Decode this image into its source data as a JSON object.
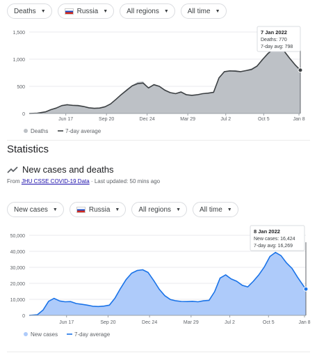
{
  "filters_top": {
    "metric": "Deaths",
    "country": "Russia",
    "region": "All regions",
    "time": "All time"
  },
  "filters_bottom": {
    "metric": "New cases",
    "country": "Russia",
    "region": "All regions",
    "time": "All time"
  },
  "statistics_heading": "Statistics",
  "subheading": "New cases and deaths",
  "source": {
    "prefix": "From ",
    "link": "JHU CSSE COVID-19 Data",
    "suffix": " · Last updated: 50 mins ago"
  },
  "colors": {
    "deaths_fill": "#bdc1c6",
    "deaths_line": "#3c4043",
    "cases_fill": "#aecbfa",
    "cases_line": "#1a73e8"
  },
  "chart_data": [
    {
      "type": "area",
      "x_ticks": [
        "Jun 17",
        "Sep 20",
        "Dec 24",
        "Mar 29",
        "Jul 2",
        "Oct 5",
        "Jan 8"
      ],
      "y_ticks": [
        "0",
        "500",
        "1,000",
        "1,500"
      ],
      "ylim": [
        0,
        1500
      ],
      "grid": true,
      "legend": [
        "Deaths",
        "7-day average"
      ],
      "legend_position": "bottom-left",
      "tooltip": {
        "date": "7 Jan 2022",
        "line1": "Deaths: 770",
        "line2": "7-day avg: 798"
      },
      "x_index_range": [
        0,
        100
      ],
      "series": [
        {
          "name": "7-day average",
          "x": [
            0,
            3,
            6,
            8,
            10,
            12,
            14,
            16,
            18,
            20,
            22,
            24,
            26,
            28,
            30,
            32,
            34,
            36,
            38,
            40,
            42,
            44,
            46,
            48,
            50,
            52,
            54,
            56,
            58,
            60,
            62,
            64,
            66,
            68,
            70,
            72,
            74,
            76,
            78,
            80,
            82,
            84,
            86,
            88,
            90,
            92,
            94,
            96,
            98,
            100
          ],
          "values": [
            0,
            5,
            30,
            70,
            100,
            145,
            160,
            150,
            145,
            130,
            105,
            95,
            100,
            125,
            175,
            260,
            350,
            430,
            510,
            550,
            560,
            470,
            530,
            500,
            430,
            385,
            365,
            395,
            345,
            335,
            345,
            365,
            375,
            390,
            655,
            770,
            785,
            780,
            770,
            790,
            810,
            870,
            990,
            1100,
            1185,
            1200,
            1150,
            1020,
            900,
            798
          ]
        },
        {
          "name": "Deaths",
          "x": [
            0,
            3,
            6,
            8,
            10,
            12,
            14,
            16,
            18,
            20,
            22,
            24,
            26,
            28,
            30,
            32,
            34,
            36,
            38,
            40,
            42,
            44,
            46,
            48,
            50,
            52,
            54,
            56,
            58,
            60,
            62,
            64,
            66,
            68,
            70,
            72,
            74,
            76,
            78,
            80,
            82,
            84,
            86,
            88,
            90,
            92,
            94,
            96,
            98,
            100
          ],
          "values": [
            0,
            6,
            34,
            74,
            110,
            150,
            175,
            150,
            160,
            135,
            112,
            95,
            110,
            128,
            185,
            265,
            360,
            450,
            520,
            580,
            590,
            480,
            545,
            510,
            445,
            390,
            370,
            410,
            355,
            340,
            350,
            370,
            380,
            400,
            670,
            780,
            790,
            800,
            780,
            800,
            830,
            885,
            1000,
            1120,
            1200,
            1215,
            1160,
            1030,
            910,
            770
          ]
        }
      ]
    },
    {
      "type": "area",
      "x_ticks": [
        "Jun 17",
        "Sep 20",
        "Dec 24",
        "Mar 29",
        "Jul 2",
        "Oct 5",
        "Jan 8"
      ],
      "y_ticks": [
        "0",
        "10,000",
        "20,000",
        "30,000",
        "40,000",
        "50,000"
      ],
      "ylim": [
        0,
        50000
      ],
      "grid": true,
      "legend": [
        "New cases",
        "7-day average"
      ],
      "legend_position": "bottom-left",
      "tooltip": {
        "date": "8 Jan 2022",
        "line1": "New cases: 16,424",
        "line2": "7-day avg: 16,269"
      },
      "x_index_range": [
        0,
        100
      ],
      "series": [
        {
          "name": "New cases",
          "x": [
            0,
            3,
            5,
            7,
            9,
            11,
            13,
            15,
            17,
            19,
            21,
            23,
            25,
            27,
            29,
            31,
            33,
            35,
            37,
            39,
            41,
            43,
            45,
            47,
            49,
            51,
            53,
            55,
            57,
            59,
            61,
            63,
            65,
            67,
            69,
            71,
            73,
            75,
            77,
            79,
            81,
            83,
            85,
            87,
            89,
            91,
            93,
            95,
            97,
            99,
            100
          ],
          "values": [
            0,
            500,
            3500,
            9000,
            11000,
            9000,
            8600,
            8700,
            7500,
            7000,
            6500,
            5800,
            5600,
            5900,
            6500,
            11000,
            17000,
            22500,
            26500,
            28200,
            28800,
            27000,
            22000,
            16500,
            12500,
            10000,
            9200,
            8800,
            8700,
            8900,
            8600,
            9200,
            9500,
            15000,
            23500,
            25500,
            23000,
            21500,
            19000,
            18000,
            21500,
            25500,
            30500,
            37000,
            39500,
            37500,
            33000,
            29500,
            24000,
            19000,
            16424
          ]
        },
        {
          "name": "7-day average",
          "x": [
            0,
            3,
            5,
            7,
            9,
            11,
            13,
            15,
            17,
            19,
            21,
            23,
            25,
            27,
            29,
            31,
            33,
            35,
            37,
            39,
            41,
            43,
            45,
            47,
            49,
            51,
            53,
            55,
            57,
            59,
            61,
            63,
            65,
            67,
            69,
            71,
            73,
            75,
            77,
            79,
            81,
            83,
            85,
            87,
            89,
            91,
            93,
            95,
            97,
            99,
            100
          ],
          "values": [
            0,
            450,
            3300,
            8800,
            10600,
            9000,
            8500,
            8600,
            7400,
            6900,
            6400,
            5700,
            5500,
            5800,
            6400,
            10800,
            16800,
            22300,
            26300,
            28000,
            28500,
            26800,
            21800,
            16300,
            12300,
            9900,
            9100,
            8700,
            8600,
            8800,
            8500,
            9100,
            9400,
            14800,
            23300,
            25300,
            22800,
            21300,
            18800,
            17800,
            21300,
            25300,
            30300,
            36800,
            39300,
            37300,
            32800,
            29300,
            23800,
            18800,
            16269
          ]
        }
      ]
    }
  ]
}
